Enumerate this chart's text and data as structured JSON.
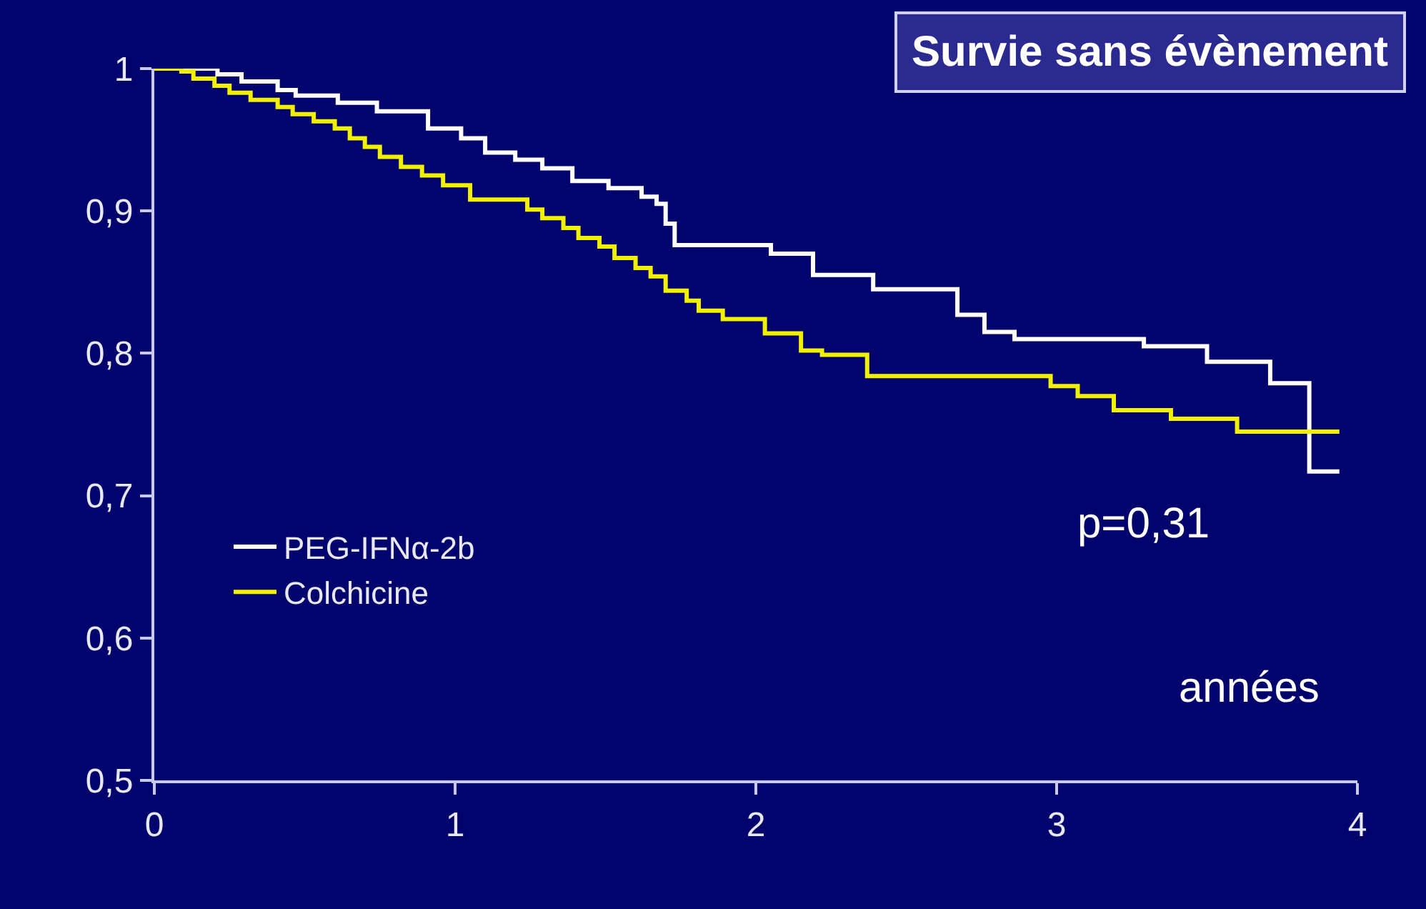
{
  "chart_data": {
    "type": "step",
    "title": "Survie sans évènement",
    "xlabel": "années",
    "annotations": [
      "p=0,31"
    ],
    "xlim": [
      0,
      4
    ],
    "xticks": [
      0,
      1,
      2,
      3,
      4
    ],
    "ylim": [
      0.5,
      1.0
    ],
    "yticks": [
      {
        "value": 0.5,
        "label": "0,5"
      },
      {
        "value": 0.6,
        "label": "0,6"
      },
      {
        "value": 0.7,
        "label": "0,7"
      },
      {
        "value": 0.8,
        "label": "0,8"
      },
      {
        "value": 0.9,
        "label": "0,9"
      },
      {
        "value": 1.0,
        "label": "1"
      }
    ],
    "grid": false,
    "legend": "left",
    "marker": "none",
    "line_style": "solid",
    "series": [
      {
        "name": "PEG-IFNα-2b",
        "color": "#ffffff",
        "x": [
          0,
          0.21,
          0.29,
          0.41,
          0.47,
          0.61,
          0.74,
          0.91,
          1.02,
          1.1,
          1.2,
          1.29,
          1.39,
          1.51,
          1.62,
          1.67,
          1.7,
          1.73,
          2.05,
          2.19,
          2.39,
          2.67,
          2.76,
          2.86,
          3.29,
          3.5,
          3.71,
          3.84,
          3.94
        ],
        "values": [
          1.0,
          0.996,
          0.991,
          0.985,
          0.981,
          0.976,
          0.97,
          0.958,
          0.951,
          0.941,
          0.936,
          0.93,
          0.921,
          0.916,
          0.91,
          0.905,
          0.891,
          0.876,
          0.87,
          0.855,
          0.845,
          0.827,
          0.815,
          0.81,
          0.805,
          0.794,
          0.779,
          0.717,
          0.717
        ]
      },
      {
        "name": "Colchicine",
        "color": "#f0f000",
        "x": [
          0,
          0.09,
          0.13,
          0.2,
          0.25,
          0.32,
          0.41,
          0.46,
          0.53,
          0.6,
          0.65,
          0.7,
          0.75,
          0.82,
          0.89,
          0.96,
          1.05,
          1.24,
          1.29,
          1.36,
          1.41,
          1.48,
          1.53,
          1.6,
          1.65,
          1.7,
          1.77,
          1.81,
          1.89,
          2.03,
          2.15,
          2.22,
          2.37,
          2.98,
          3.07,
          3.19,
          3.38,
          3.6,
          3.94
        ],
        "values": [
          1.0,
          0.998,
          0.993,
          0.988,
          0.983,
          0.978,
          0.973,
          0.968,
          0.963,
          0.958,
          0.951,
          0.945,
          0.938,
          0.931,
          0.925,
          0.918,
          0.908,
          0.901,
          0.895,
          0.888,
          0.881,
          0.875,
          0.867,
          0.86,
          0.854,
          0.844,
          0.837,
          0.83,
          0.824,
          0.814,
          0.802,
          0.799,
          0.784,
          0.777,
          0.77,
          0.76,
          0.754,
          0.745,
          0.745
        ]
      }
    ]
  }
}
